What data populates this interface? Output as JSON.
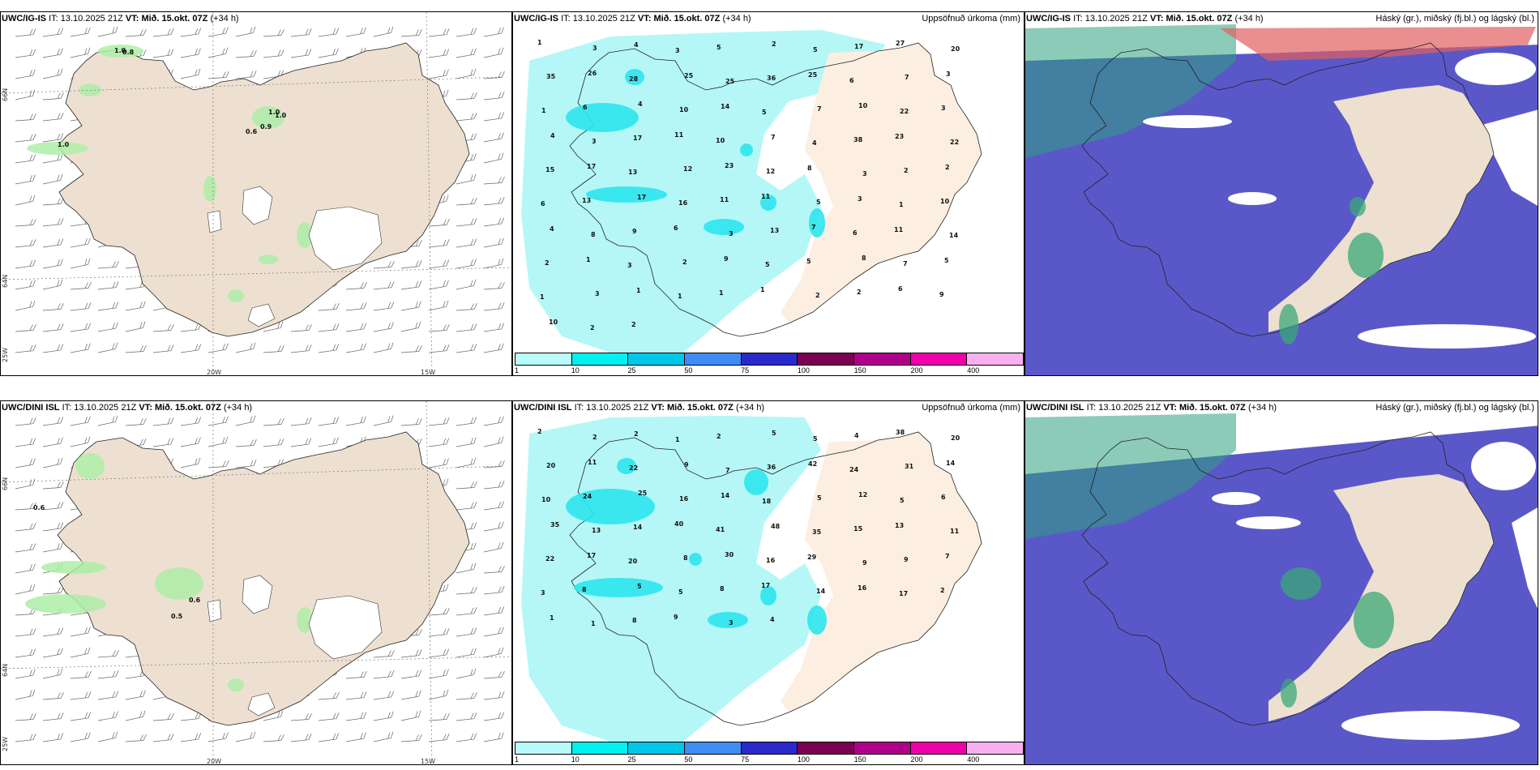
{
  "rows": [
    {
      "id": "igis",
      "wind_panel": {
        "model": "UWC/IG-IS",
        "init_label": "IT:",
        "init_time": "13.10.2025 21Z",
        "valid_label": "VT:",
        "valid_time": "Mið. 15.okt. 07Z",
        "lead": "(+34 h)",
        "values": [
          "1.0",
          "0.8",
          "1.0",
          "1.0",
          "0.9",
          "0.6",
          "1.0"
        ],
        "lon_labels": [
          "20W",
          "15W"
        ],
        "lat_labels": [
          "66N",
          "64N",
          "25W"
        ]
      },
      "precip_panel": {
        "model": "UWC/IG-IS",
        "init_label": "IT:",
        "init_time": "13.10.2025 21Z",
        "valid_label": "VT:",
        "valid_time": "Mið. 15.okt. 07Z",
        "lead": "(+34 h)",
        "right_title": "Uppsöfnuð úrkoma (mm)",
        "values": [
          "1",
          "3",
          "4",
          "3",
          "5",
          "2",
          "5",
          "17",
          "27",
          "20",
          "35",
          "26",
          "28",
          "25",
          "25",
          "36",
          "25",
          "6",
          "7",
          "3",
          "1",
          "6",
          "4",
          "10",
          "14",
          "5",
          "7",
          "10",
          "22",
          "3",
          "4",
          "3",
          "17",
          "11",
          "10",
          "7",
          "4",
          "38",
          "23",
          "22",
          "15",
          "17",
          "13",
          "12",
          "23",
          "12",
          "8",
          "3",
          "2",
          "2",
          "6",
          "13",
          "17",
          "16",
          "11",
          "11",
          "5",
          "3",
          "1",
          "10",
          "4",
          "8",
          "9",
          "6",
          "3",
          "13",
          "7",
          "6",
          "11",
          "14",
          "2",
          "1",
          "3",
          "2",
          "9",
          "5",
          "5",
          "8",
          "7",
          "5",
          "1",
          "3",
          "1",
          "1",
          "1",
          "1",
          "2",
          "2",
          "6",
          "9",
          "10",
          "2",
          "2"
        ]
      },
      "cloud_panel": {
        "model": "UWC/IG-IS",
        "init_label": "IT:",
        "init_time": "13.10.2025 21Z",
        "valid_label": "VT:",
        "valid_time": "Mið. 15.okt. 07Z",
        "lead": "(+34 h)",
        "right_title": "Háský (gr.), miðský (fj.bl.) og lágský (bl.)"
      }
    },
    {
      "id": "dini",
      "wind_panel": {
        "model": "UWC/DINI ISL",
        "init_label": "IT:",
        "init_time": "13.10.2025 21Z",
        "valid_label": "VT:",
        "valid_time": "Mið. 15.okt. 07Z",
        "lead": "(+34 h)",
        "values": [
          "0.6",
          "0.6",
          "0.5"
        ],
        "lon_labels": [
          "20W",
          "15W"
        ],
        "lat_labels": [
          "66N",
          "64N",
          "25W"
        ]
      },
      "precip_panel": {
        "model": "UWC/DINI ISL",
        "init_label": "IT:",
        "init_time": "13.10.2025 21Z",
        "valid_label": "VT:",
        "valid_time": "Mið. 15.okt. 07Z",
        "lead": "(+34 h)",
        "right_title": "Uppsöfnuð úrkoma (mm)",
        "values": [
          "2",
          "2",
          "2",
          "1",
          "2",
          "5",
          "5",
          "4",
          "38",
          "20",
          "20",
          "11",
          "22",
          "9",
          "7",
          "36",
          "42",
          "24",
          "31",
          "14",
          "10",
          "24",
          "25",
          "16",
          "14",
          "18",
          "5",
          "12",
          "5",
          "6",
          "35",
          "13",
          "14",
          "40",
          "41",
          "48",
          "35",
          "15",
          "13",
          "11",
          "22",
          "17",
          "20",
          "8",
          "30",
          "16",
          "29",
          "9",
          "9",
          "7",
          "3",
          "8",
          "5",
          "5",
          "8",
          "17",
          "14",
          "16",
          "17",
          "2",
          "1",
          "1",
          "8",
          "9",
          "3",
          "4"
        ]
      },
      "cloud_panel": {
        "model": "UWC/DINI ISL",
        "init_label": "IT:",
        "init_time": "13.10.2025 21Z",
        "valid_label": "VT:",
        "valid_time": "Mið. 15.okt. 07Z",
        "lead": "(+34 h)",
        "right_title": "Háský (gr.), miðský (fj.bl.) og lágský (bl.)"
      }
    }
  ],
  "precip_colorbar": {
    "ticks": [
      "1",
      "10",
      "25",
      "50",
      "75",
      "100",
      "150",
      "200",
      "400"
    ],
    "colors": [
      "#b9fbfb",
      "#00f0f0",
      "#00c7e8",
      "#3f8cf5",
      "#2a2acc",
      "#7a0050",
      "#b0008a",
      "#f000a8",
      "#f8b0f0"
    ]
  },
  "colors": {
    "land": "#ede0d0",
    "land_light": "#fcefe2",
    "precip_light": "#b5f7f7",
    "precip_mid": "#2ee6ee",
    "cloud_blue": "#5a58c8",
    "cloud_green": "#3aa878",
    "cloud_red": "#d04848",
    "wind_green": "#aeeea8"
  }
}
